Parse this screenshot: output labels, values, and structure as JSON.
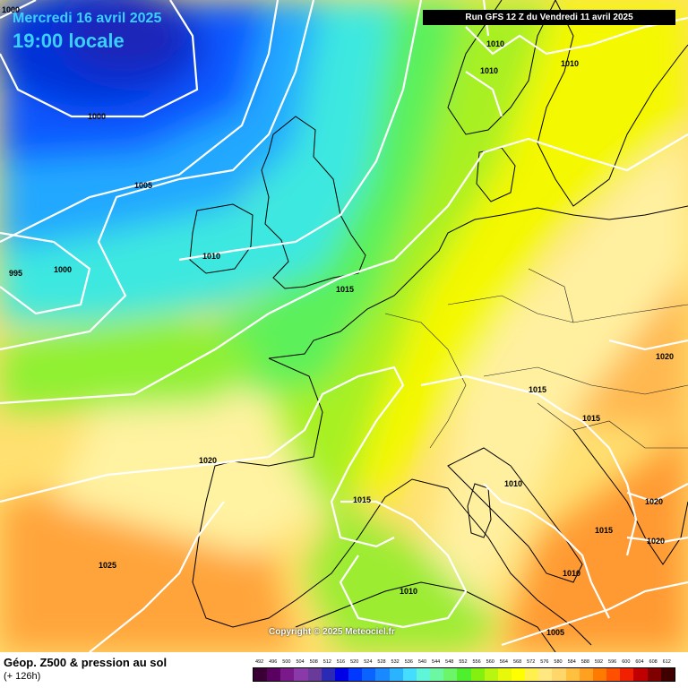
{
  "header": {
    "date": "Mercredi 16 avril 2025",
    "time": "19:00 locale",
    "run": "Run GFS 12 Z du Vendredi 11 avril 2025"
  },
  "footer": {
    "product": "Géop. Z500 & pression au sol",
    "lead": "(+ 126h)",
    "copyright": "Copyright © 2025 Meteociel.fr"
  },
  "legend": {
    "values": [
      "492",
      "496",
      "500",
      "504",
      "508",
      "512",
      "516",
      "520",
      "524",
      "528",
      "532",
      "536",
      "540",
      "544",
      "548",
      "552",
      "556",
      "560",
      "564",
      "568",
      "572",
      "576",
      "580",
      "584",
      "588",
      "592",
      "596",
      "600",
      "604",
      "608",
      "612"
    ],
    "colors": [
      "#3a0036",
      "#5a0060",
      "#7a1a8a",
      "#8a3aa8",
      "#6a3a9a",
      "#2a2ab4",
      "#0000e6",
      "#0038ff",
      "#0a62ff",
      "#1a88ff",
      "#2ab4ff",
      "#44dcff",
      "#5ff5d8",
      "#6cf8a2",
      "#6df56a",
      "#4ef02e",
      "#84f010",
      "#b8f510",
      "#e8f80a",
      "#ffff00",
      "#fff050",
      "#ffe880",
      "#ffd66a",
      "#ffc040",
      "#ffa020",
      "#ff7a00",
      "#ff5000",
      "#f02000",
      "#c00000",
      "#800000",
      "#400000"
    ]
  },
  "isobars": [
    {
      "label": "1000",
      "note": "top-left"
    },
    {
      "label": "1000",
      "note": "north Atlantic"
    },
    {
      "label": "1005",
      "note": "Atlantic"
    },
    {
      "label": "995",
      "note": "west"
    },
    {
      "label": "1000",
      "note": "west"
    },
    {
      "label": "1010",
      "note": "Ireland"
    },
    {
      "label": "1015",
      "note": "English Channel"
    },
    {
      "label": "1010",
      "note": "Norway"
    },
    {
      "label": "1010",
      "note": "Norway south"
    },
    {
      "label": "1010",
      "note": "Sweden"
    },
    {
      "label": "1020",
      "note": "Biscay"
    },
    {
      "label": "1015",
      "note": "Pyrenees"
    },
    {
      "label": "1025",
      "note": "Portugal"
    },
    {
      "label": "1015",
      "note": "Alps"
    },
    {
      "label": "1015",
      "note": "Croatia"
    },
    {
      "label": "1010",
      "note": "Italy"
    },
    {
      "label": "1015",
      "note": "Adriatic"
    },
    {
      "label": "1010",
      "note": "south Italy"
    },
    {
      "label": "1010",
      "note": "Algeria"
    },
    {
      "label": "1005",
      "note": "Libya"
    },
    {
      "label": "1020",
      "note": "Balkans"
    },
    {
      "label": "1020",
      "note": "Greece"
    },
    {
      "label": "1020",
      "note": "Eastern Europe"
    }
  ]
}
